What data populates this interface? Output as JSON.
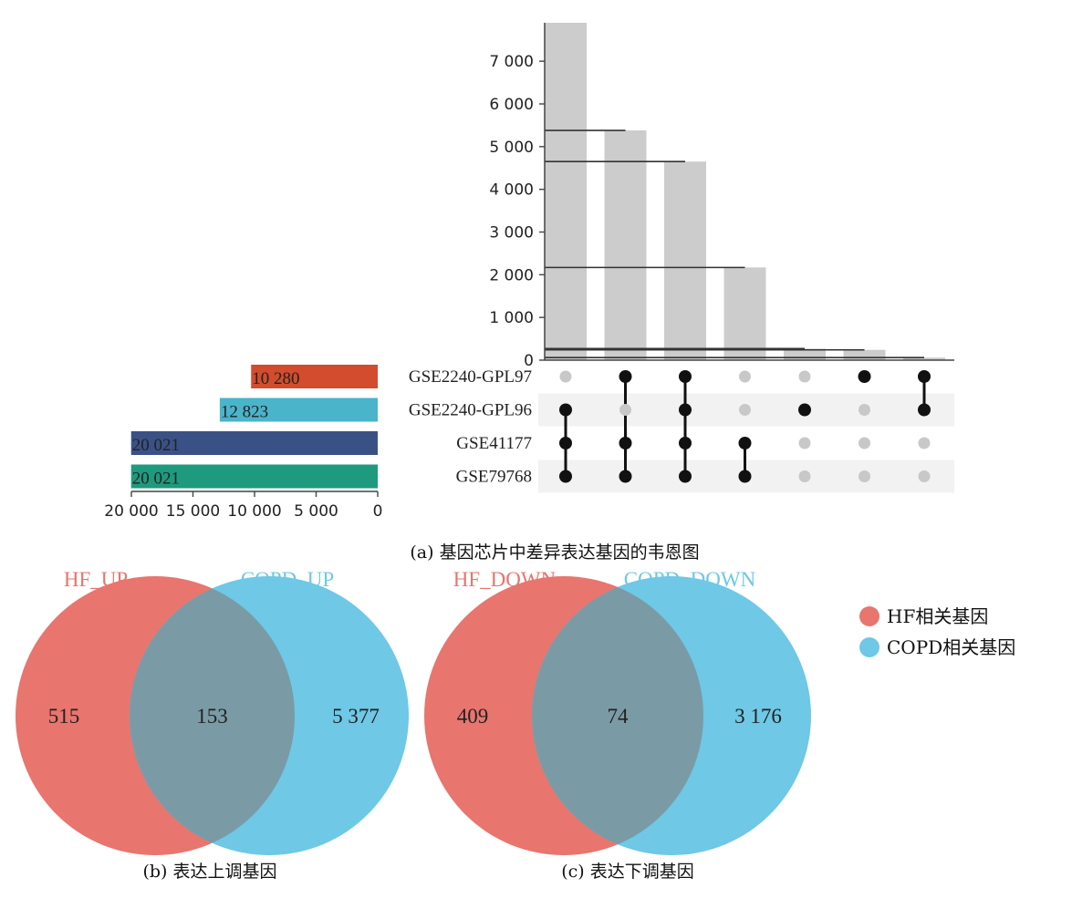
{
  "chart_data": [
    {
      "type": "upset",
      "caption": "(a) 基因芯片中差异表达基因的韦恩图",
      "intersection_axis": {
        "ylim": [
          0,
          7900
        ],
        "ticks": [
          0,
          1000,
          2000,
          3000,
          4000,
          5000,
          6000,
          7000
        ],
        "tick_labels": [
          "0",
          "1 000",
          "2 000",
          "3 000",
          "4 000",
          "5 000",
          "6 000",
          "7 000"
        ]
      },
      "sets": [
        {
          "name": "GSE2240-GPL97",
          "size": 10280,
          "size_label": "10 280",
          "color": "#d24c2d"
        },
        {
          "name": "GSE2240-GPL96",
          "size": 12823,
          "size_label": "12 823",
          "color": "#4ab4cb"
        },
        {
          "name": "GSE41177",
          "size": 20021,
          "size_label": "20 021",
          "color": "#3a5186"
        },
        {
          "name": "GSE79768",
          "size": 20021,
          "size_label": "20 021",
          "color": "#1e9a7e"
        }
      ],
      "set_axis": {
        "xlim": [
          0,
          20000
        ],
        "ticks": [
          20000,
          15000,
          10000,
          5000,
          0
        ],
        "tick_labels": [
          "20 000",
          "15 000",
          "10 000",
          "5 000",
          "0"
        ]
      },
      "intersections": [
        {
          "value": 7900,
          "members": [
            1,
            2,
            3
          ]
        },
        {
          "value": 5380,
          "members": [
            0,
            2,
            3
          ]
        },
        {
          "value": 4650,
          "members": [
            0,
            1,
            2,
            3
          ]
        },
        {
          "value": 2170,
          "members": [
            2,
            3
          ]
        },
        {
          "value": 270,
          "members": [
            1
          ]
        },
        {
          "value": 240,
          "members": [
            0
          ]
        },
        {
          "value": 60,
          "members": [
            0,
            1
          ]
        }
      ],
      "reference_lines": [
        5380,
        4650,
        2170,
        270,
        240,
        60
      ],
      "bar_color": "#cccccc",
      "active_dot_color": "#111111",
      "inactive_dot_color": "#c8c8c8"
    },
    {
      "type": "venn",
      "caption": "(b) 表达上调基因",
      "left": {
        "label": "HF_UP",
        "only": "515",
        "color": "#e8756e"
      },
      "right": {
        "label": "COPD_UP",
        "only": "5 377",
        "color": "#6ec8e6"
      },
      "overlap": "153",
      "overlap_color": "#7a9ba6"
    },
    {
      "type": "venn",
      "caption": "(c) 表达下调基因",
      "left": {
        "label": "HF_DOWN",
        "only": "409",
        "color": "#e8756e"
      },
      "right": {
        "label": "COPD_DOWN",
        "only": "3 176",
        "color": "#6ec8e6"
      },
      "overlap": "74",
      "overlap_color": "#7a9ba6"
    }
  ],
  "legend": [
    {
      "label": "HF相关基因",
      "color": "#e8756e"
    },
    {
      "label": "COPD相关基因",
      "color": "#6ec8e6"
    }
  ]
}
